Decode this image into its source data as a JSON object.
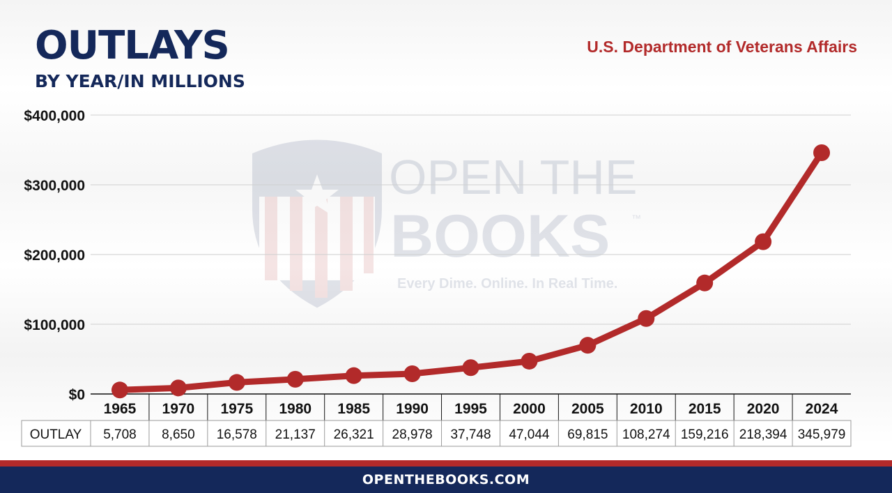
{
  "header": {
    "title": "OUTLAYS",
    "subtitle": "BY YEAR/IN MILLIONS",
    "agency": "U.S. Department of Veterans Affairs"
  },
  "watermark": {
    "line1": "OPEN THE",
    "line2": "BOOKS",
    "trademark": "™",
    "tagline": "Every Dime. Online. In Real Time."
  },
  "table": {
    "row_label": "OUTLAY",
    "values_text": [
      "5,708",
      "8,650",
      "16,578",
      "21,137",
      "26,321",
      "28,978",
      "37,748",
      "47,044",
      "69,815",
      "108,274",
      "159,216",
      "218,394",
      "345,979"
    ]
  },
  "footer": {
    "text": "OPENTHEBOOKS.COM"
  },
  "colors": {
    "line": "#b22a2a",
    "title": "#14285a",
    "footer_blue": "#14285a",
    "footer_red": "#b22a2a"
  },
  "chart_data": {
    "type": "line",
    "title": "OUTLAYS",
    "subtitle": "BY YEAR/IN MILLIONS",
    "categories": [
      "1965",
      "1970",
      "1975",
      "1980",
      "1985",
      "1990",
      "1995",
      "2000",
      "2005",
      "2010",
      "2015",
      "2020",
      "2024"
    ],
    "values": [
      5708,
      8650,
      16578,
      21137,
      26321,
      28978,
      37748,
      47044,
      69815,
      108274,
      159216,
      218394,
      345979
    ],
    "ylim": [
      0,
      400000
    ],
    "yticks": [
      0,
      100000,
      200000,
      300000,
      400000
    ],
    "ytick_labels": [
      "$0",
      "$100,000",
      "$200,000",
      "$300,000",
      "$400,000"
    ],
    "grid": true
  }
}
